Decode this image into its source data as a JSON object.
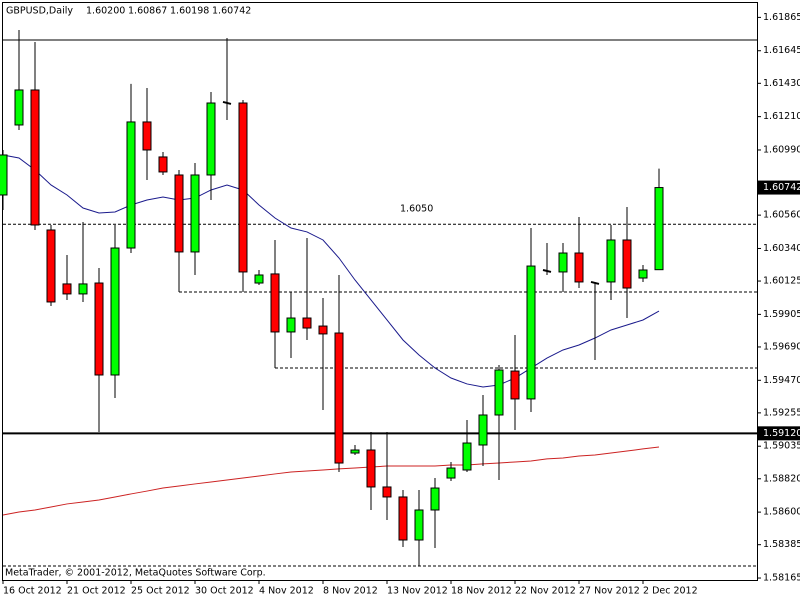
{
  "chart_data": {
    "type": "candlestick",
    "title": "GBPUSD,Daily",
    "title_ohlc_labels": [
      "1.60200",
      "1.60867",
      "1.60198",
      "1.60742"
    ],
    "footer": "MetaTrader, © 2001-2012, MetaQuotes Software Corp.",
    "categories": [
      "16 Oct 2012",
      null,
      null,
      null,
      "21 Oct 2012",
      null,
      null,
      null,
      "25 Oct 2012",
      null,
      null,
      null,
      "30 Oct 2012",
      null,
      null,
      null,
      "4 Nov 2012",
      null,
      null,
      null,
      "8 Nov 2012",
      null,
      null,
      null,
      "13 Nov 2012",
      null,
      null,
      null,
      "18 Nov 2012",
      null,
      null,
      null,
      "22 Nov 2012",
      null,
      null,
      null,
      "27 Nov 2012",
      null,
      null,
      null,
      "2 Dec 2012",
      null
    ],
    "open": [
      1.60693,
      1.61155,
      1.61386,
      1.60462,
      1.60106,
      1.6004,
      1.60112,
      1.59505,
      1.60343,
      1.61175,
      1.60944,
      1.60825,
      1.60317,
      1.60825,
      1.61307,
      1.613,
      1.60112,
      1.60172,
      1.59789,
      1.59881,
      1.59828,
      1.59782,
      1.5899,
      1.5901,
      1.58766,
      1.587,
      1.58416,
      1.58614,
      1.58825,
      1.58878,
      1.59043,
      1.59241,
      1.59531,
      1.59347,
      1.60185,
      1.60185,
      1.6031,
      1.60119,
      1.60119,
      1.60396,
      1.60145,
      1.602
    ],
    "high": [
      1.6099,
      1.61782,
      1.61703,
      1.60495,
      1.60297,
      1.60515,
      1.60211,
      1.60495,
      1.61426,
      1.61399,
      1.60977,
      1.60858,
      1.60904,
      1.61373,
      1.61729,
      1.6132,
      1.60198,
      1.60396,
      1.60053,
      1.60409,
      1.60013,
      1.60165,
      1.59043,
      1.59129,
      1.59129,
      1.58746,
      1.58746,
      1.58825,
      1.58931,
      1.59208,
      1.59373,
      1.59571,
      1.59769,
      1.60475,
      1.60376,
      1.60376,
      1.60548,
      1.60119,
      1.60495,
      1.60614,
      1.60231,
      1.60867
    ],
    "low": [
      1.60594,
      1.61122,
      1.60462,
      1.5996,
      1.6,
      1.59987,
      1.59129,
      1.59353,
      1.6031,
      1.60792,
      1.60825,
      1.60053,
      1.60165,
      1.6066,
      1.61188,
      1.60053,
      1.60099,
      1.59551,
      1.59617,
      1.59736,
      1.59274,
      1.58865,
      1.58977,
      1.58614,
      1.58548,
      1.5837,
      1.58244,
      1.58363,
      1.58805,
      1.58865,
      1.58904,
      1.58812,
      1.59142,
      1.59261,
      1.60165,
      1.60053,
      1.60079,
      1.59604,
      1.6,
      1.59881,
      1.60119,
      1.60198
    ],
    "close": [
      1.60957,
      1.61386,
      1.60495,
      1.59987,
      1.6004,
      1.60106,
      1.59505,
      1.60343,
      1.61175,
      1.6099,
      1.60845,
      1.60317,
      1.60825,
      1.613,
      1.61294,
      1.60185,
      1.60165,
      1.59789,
      1.59881,
      1.59815,
      1.59776,
      1.58924,
      1.5901,
      1.58766,
      1.587,
      1.58416,
      1.58614,
      1.58759,
      1.58891,
      1.59056,
      1.59241,
      1.59538,
      1.59347,
      1.60224,
      1.60198,
      1.6031,
      1.60119,
      1.60106,
      1.60396,
      1.60079,
      1.60198,
      1.60742
    ],
    "up_color": "#00ff00",
    "down_color": "#ff0000",
    "lines": [
      {
        "color": "#1a1a8c",
        "values": [
          1.60957,
          1.60937,
          1.60858,
          1.60759,
          1.60693,
          1.60607,
          1.60574,
          1.60581,
          1.60627,
          1.6066,
          1.6068,
          1.6066,
          1.60673,
          1.60726,
          1.60759,
          1.60726,
          1.60627,
          1.60541,
          1.60475,
          1.60449,
          1.60396,
          1.60277,
          1.60132,
          1.6,
          1.59868,
          1.59736,
          1.59637,
          1.59551,
          1.59485,
          1.59446,
          1.59426,
          1.59439,
          1.59485,
          1.59551,
          1.59617,
          1.5967,
          1.59703,
          1.59749,
          1.59802,
          1.59835,
          1.59868,
          1.59927
        ]
      },
      {
        "color": "#cc2222",
        "values": [
          1.58581,
          1.58601,
          1.58614,
          1.58634,
          1.58654,
          1.58667,
          1.5868,
          1.587,
          1.5872,
          1.58739,
          1.58759,
          1.58772,
          1.58786,
          1.58799,
          1.58812,
          1.58825,
          1.58838,
          1.58852,
          1.58865,
          1.58871,
          1.58878,
          1.58885,
          1.58891,
          1.58898,
          1.58904,
          1.58904,
          1.58904,
          1.58904,
          1.58911,
          1.58911,
          1.58918,
          1.58924,
          1.58931,
          1.58937,
          1.58951,
          1.58957,
          1.5897,
          1.58977,
          1.5899,
          1.59003,
          1.59017,
          1.5903
        ]
      }
    ],
    "levels": [
      {
        "value": 1.61716,
        "style": "solid"
      },
      {
        "value": 1.5912,
        "value_label": "1.59120",
        "style": "bold"
      },
      {
        "value": 1.605,
        "value_label": "1.6050",
        "style": "dashed"
      },
      {
        "value": 1.60053,
        "style": "dashed"
      },
      {
        "value": 1.59551,
        "style": "dashed"
      },
      {
        "value": 1.58244,
        "style": "dashed"
      }
    ],
    "ylim": [
      1.58152,
      1.6196
    ],
    "yticks": [
      1.61865,
      1.61645,
      {
        "value": 1.6143,
        "label": "1.61430"
      },
      {
        "value": 1.6121,
        "label": "1.61210"
      },
      {
        "value": 1.6099,
        "label": "1.60990"
      },
      {
        "value": 1.6056,
        "label": "1.60560"
      },
      {
        "value": 1.6034,
        "label": "1.60340"
      },
      1.60125,
      1.59905,
      {
        "value": 1.5969,
        "label": "1.59690"
      },
      {
        "value": 1.5947,
        "label": "1.59470"
      },
      1.59255,
      1.59035,
      {
        "value": 1.5882,
        "label": "1.58820"
      },
      {
        "value": 1.586,
        "label": "1.58600"
      },
      1.58385,
      1.58165
    ]
  }
}
